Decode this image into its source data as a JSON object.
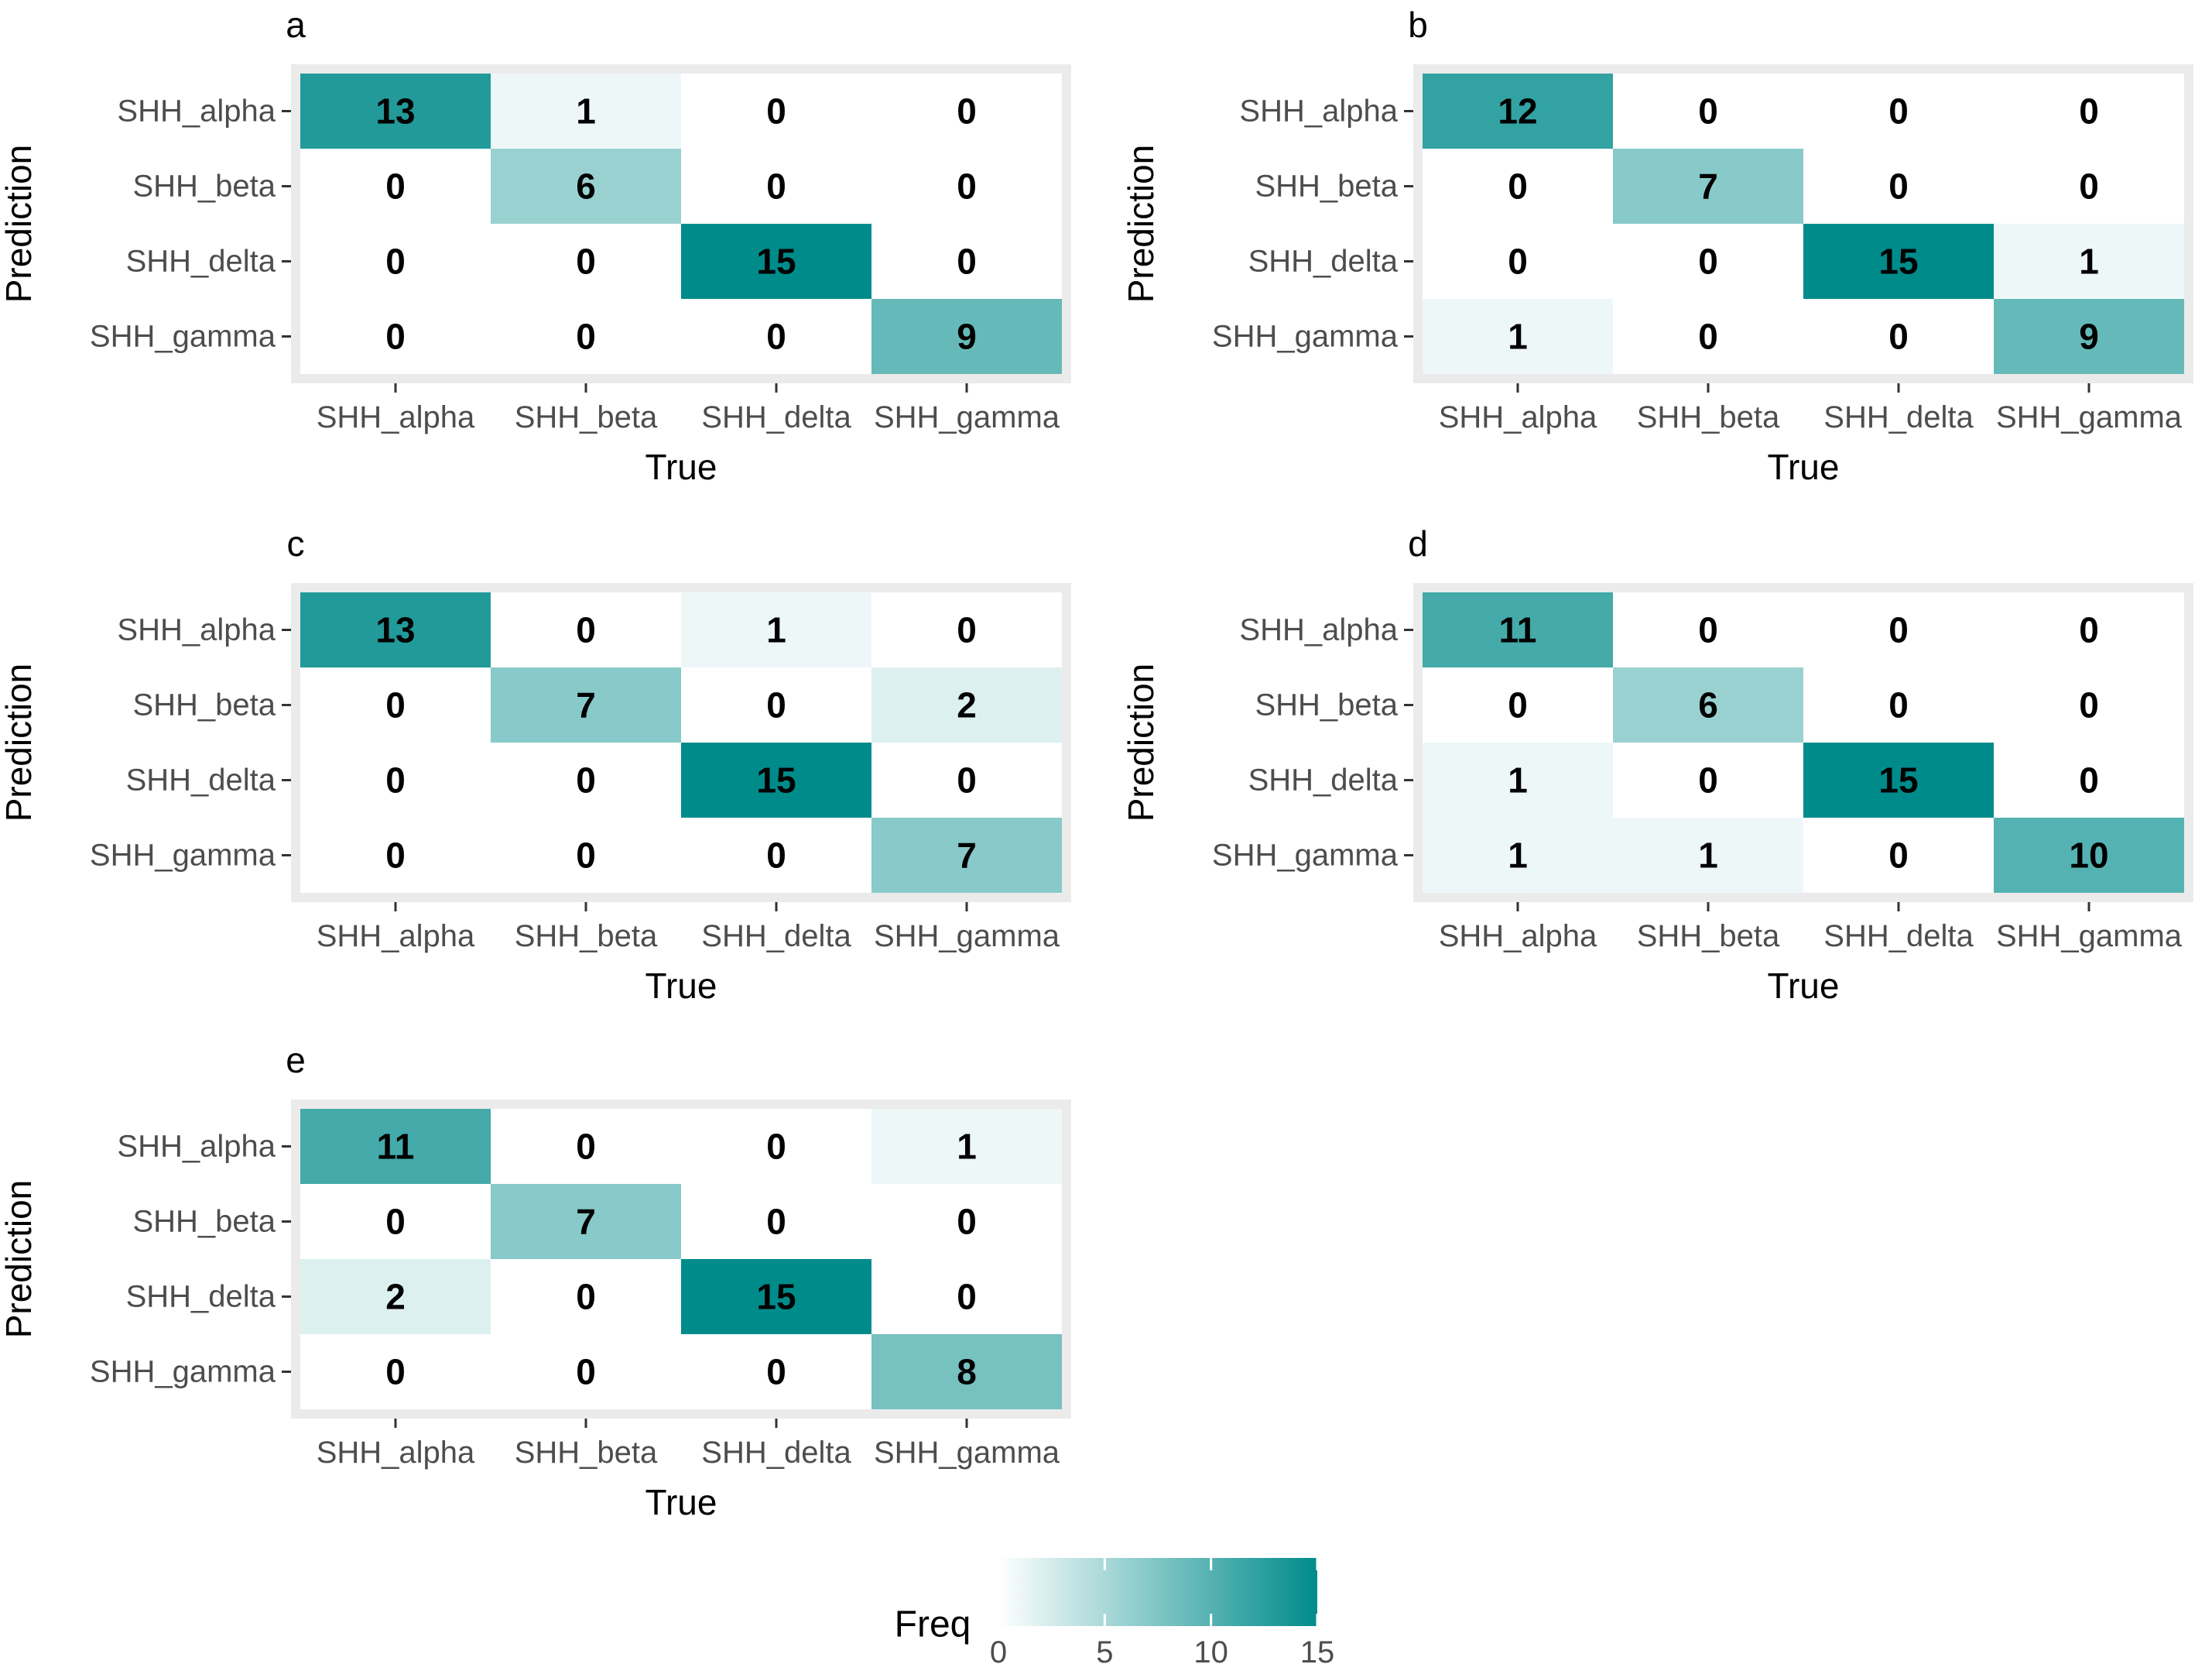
{
  "chart_data": [
    {
      "type": "heatmap",
      "panel_label": "a",
      "xlabel": "True",
      "ylabel": "Prediction",
      "x_categories": [
        "SHH_alpha",
        "SHH_beta",
        "SHH_delta",
        "SHH_gamma"
      ],
      "y_categories": [
        "SHH_alpha",
        "SHH_beta",
        "SHH_delta",
        "SHH_gamma"
      ],
      "values": [
        [
          13,
          1,
          0,
          0
        ],
        [
          0,
          6,
          0,
          0
        ],
        [
          0,
          0,
          15,
          0
        ],
        [
          0,
          0,
          0,
          9
        ]
      ]
    },
    {
      "type": "heatmap",
      "panel_label": "b",
      "xlabel": "True",
      "ylabel": "Prediction",
      "x_categories": [
        "SHH_alpha",
        "SHH_beta",
        "SHH_delta",
        "SHH_gamma"
      ],
      "y_categories": [
        "SHH_alpha",
        "SHH_beta",
        "SHH_delta",
        "SHH_gamma"
      ],
      "values": [
        [
          12,
          0,
          0,
          0
        ],
        [
          0,
          7,
          0,
          0
        ],
        [
          0,
          0,
          15,
          1
        ],
        [
          1,
          0,
          0,
          9
        ]
      ]
    },
    {
      "type": "heatmap",
      "panel_label": "c",
      "xlabel": "True",
      "ylabel": "Prediction",
      "x_categories": [
        "SHH_alpha",
        "SHH_beta",
        "SHH_delta",
        "SHH_gamma"
      ],
      "y_categories": [
        "SHH_alpha",
        "SHH_beta",
        "SHH_delta",
        "SHH_gamma"
      ],
      "values": [
        [
          13,
          0,
          1,
          0
        ],
        [
          0,
          7,
          0,
          2
        ],
        [
          0,
          0,
          15,
          0
        ],
        [
          0,
          0,
          0,
          7
        ]
      ]
    },
    {
      "type": "heatmap",
      "panel_label": "d",
      "xlabel": "True",
      "ylabel": "Prediction",
      "x_categories": [
        "SHH_alpha",
        "SHH_beta",
        "SHH_delta",
        "SHH_gamma"
      ],
      "y_categories": [
        "SHH_alpha",
        "SHH_beta",
        "SHH_delta",
        "SHH_gamma"
      ],
      "values": [
        [
          11,
          0,
          0,
          0
        ],
        [
          0,
          6,
          0,
          0
        ],
        [
          1,
          0,
          15,
          0
        ],
        [
          1,
          1,
          0,
          10
        ]
      ]
    },
    {
      "type": "heatmap",
      "panel_label": "e",
      "xlabel": "True",
      "ylabel": "Prediction",
      "x_categories": [
        "SHH_alpha",
        "SHH_beta",
        "SHH_delta",
        "SHH_gamma"
      ],
      "y_categories": [
        "SHH_alpha",
        "SHH_beta",
        "SHH_delta",
        "SHH_gamma"
      ],
      "values": [
        [
          11,
          0,
          0,
          1
        ],
        [
          0,
          7,
          0,
          0
        ],
        [
          2,
          0,
          15,
          0
        ],
        [
          0,
          0,
          0,
          8
        ]
      ]
    }
  ],
  "legend": {
    "title": "Freq",
    "ticks": [
      0,
      5,
      10,
      15
    ],
    "range": [
      0,
      15
    ],
    "low_color": "#ffffff",
    "high_color": "#008b8b"
  },
  "style": {
    "panel_background": "#ebebeb",
    "text_color": "#000000",
    "axis_text_color": "#4d4d4d"
  }
}
